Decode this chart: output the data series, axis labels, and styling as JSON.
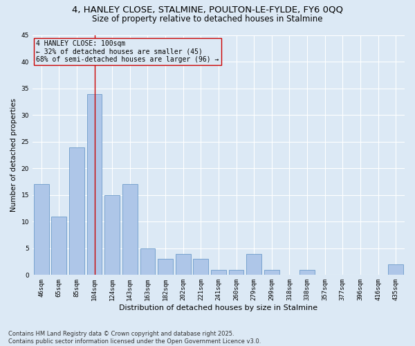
{
  "title": "4, HANLEY CLOSE, STALMINE, POULTON-LE-FYLDE, FY6 0QQ",
  "subtitle": "Size of property relative to detached houses in Stalmine",
  "xlabel": "Distribution of detached houses by size in Stalmine",
  "ylabel": "Number of detached properties",
  "categories": [
    "46sqm",
    "65sqm",
    "85sqm",
    "104sqm",
    "124sqm",
    "143sqm",
    "163sqm",
    "182sqm",
    "202sqm",
    "221sqm",
    "241sqm",
    "260sqm",
    "279sqm",
    "299sqm",
    "318sqm",
    "338sqm",
    "357sqm",
    "377sqm",
    "396sqm",
    "416sqm",
    "435sqm"
  ],
  "values": [
    17,
    11,
    24,
    34,
    15,
    17,
    5,
    3,
    4,
    3,
    1,
    1,
    4,
    1,
    0,
    1,
    0,
    0,
    0,
    0,
    2
  ],
  "bar_color": "#aec6e8",
  "bar_edge_color": "#5a8fc2",
  "highlight_index": 3,
  "highlight_line_color": "#cc0000",
  "annotation_text": "4 HANLEY CLOSE: 100sqm\n← 32% of detached houses are smaller (45)\n68% of semi-detached houses are larger (96) →",
  "annotation_box_edge": "#cc0000",
  "ylim": [
    0,
    45
  ],
  "yticks": [
    0,
    5,
    10,
    15,
    20,
    25,
    30,
    35,
    40,
    45
  ],
  "background_color": "#dce9f5",
  "grid_color": "#ffffff",
  "footer": "Contains HM Land Registry data © Crown copyright and database right 2025.\nContains public sector information licensed under the Open Government Licence v3.0.",
  "title_fontsize": 9.5,
  "subtitle_fontsize": 8.5,
  "xlabel_fontsize": 8,
  "ylabel_fontsize": 7.5,
  "tick_fontsize": 6.5,
  "annotation_fontsize": 7,
  "footer_fontsize": 6
}
